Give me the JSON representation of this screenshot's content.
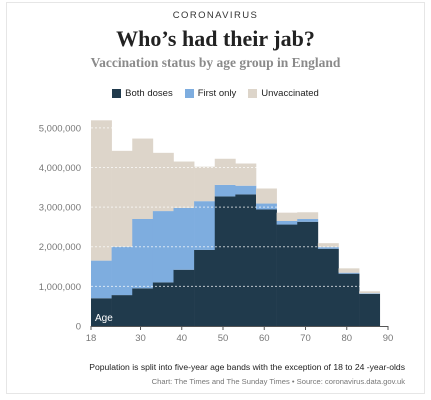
{
  "header": {
    "kicker": "CORONAVIRUS",
    "title": "Who’s had their jab?",
    "subtitle": "Vaccination status by age group in England"
  },
  "legend": [
    {
      "label": "Both doses",
      "color": "#203a4c"
    },
    {
      "label": "First only",
      "color": "#7eaddf"
    },
    {
      "label": "Unvaccinated",
      "color": "#ddd5ca"
    }
  ],
  "footer": {
    "note": "Population is split into five-year age bands with the exception of 18 to 24 -year-olds",
    "source": "Chart: The Times and The Sunday Times • Source: coronavirus.data.gov.uk"
  },
  "chart_data": {
    "type": "bar",
    "stacked": true,
    "x_label_inside": "Age",
    "x_ticks": [
      18,
      30,
      40,
      50,
      60,
      70,
      80,
      90
    ],
    "y_ticks": [
      0,
      1000000,
      2000000,
      3000000,
      4000000,
      5000000
    ],
    "y_tick_labels": [
      "0",
      "1,000,000",
      "2,000,000",
      "3,000,000",
      "4,000,000",
      "5,000,000"
    ],
    "ylim": [
      0,
      5400000
    ],
    "xlim": [
      18,
      90
    ],
    "grid": true,
    "legend_position": "top-center",
    "bins": [
      {
        "x0": 18,
        "x1": 23,
        "both": 700000,
        "first": 950000,
        "unvaccinated": 3540000
      },
      {
        "x0": 23,
        "x1": 28,
        "both": 780000,
        "first": 1220000,
        "unvaccinated": 2420000
      },
      {
        "x0": 28,
        "x1": 33,
        "both": 950000,
        "first": 1750000,
        "unvaccinated": 2030000
      },
      {
        "x0": 33,
        "x1": 38,
        "both": 1100000,
        "first": 1800000,
        "unvaccinated": 1470000
      },
      {
        "x0": 38,
        "x1": 43,
        "both": 1420000,
        "first": 1560000,
        "unvaccinated": 1170000
      },
      {
        "x0": 43,
        "x1": 48,
        "both": 1920000,
        "first": 1230000,
        "unvaccinated": 870000
      },
      {
        "x0": 48,
        "x1": 53,
        "both": 3270000,
        "first": 290000,
        "unvaccinated": 660000
      },
      {
        "x0": 53,
        "x1": 58,
        "both": 3320000,
        "first": 220000,
        "unvaccinated": 560000
      },
      {
        "x0": 58,
        "x1": 63,
        "both": 2940000,
        "first": 150000,
        "unvaccinated": 380000
      },
      {
        "x0": 63,
        "x1": 68,
        "both": 2560000,
        "first": 90000,
        "unvaccinated": 210000
      },
      {
        "x0": 68,
        "x1": 73,
        "both": 2630000,
        "first": 70000,
        "unvaccinated": 170000
      },
      {
        "x0": 73,
        "x1": 78,
        "both": 1950000,
        "first": 40000,
        "unvaccinated": 100000
      },
      {
        "x0": 78,
        "x1": 83,
        "both": 1320000,
        "first": 25000,
        "unvaccinated": 110000
      },
      {
        "x0": 83,
        "x1": 88,
        "both": 810000,
        "first": 15000,
        "unvaccinated": 50000
      }
    ]
  }
}
